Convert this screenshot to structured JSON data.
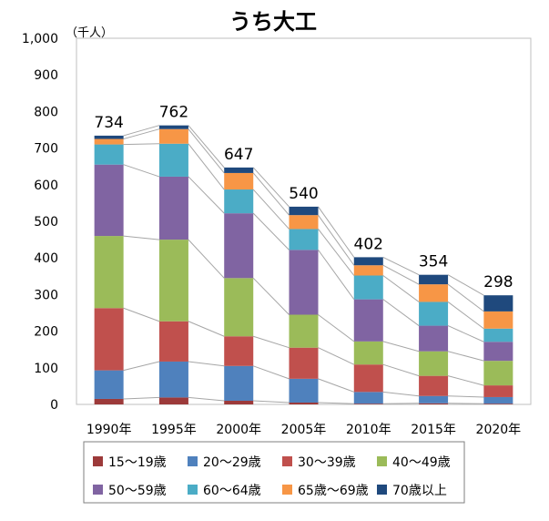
{
  "chart_data": {
    "type": "bar",
    "stacked": true,
    "title": "うち大工",
    "unit_label": "（千人）",
    "categories": [
      "1990年",
      "1995年",
      "2000年",
      "2005年",
      "2010年",
      "2015年",
      "2020年"
    ],
    "totals": [
      734,
      762,
      647,
      540,
      402,
      354,
      298
    ],
    "ylim": [
      0,
      1000
    ],
    "yticks": [
      "0",
      "100",
      "200",
      "300",
      "400",
      "500",
      "600",
      "700",
      "800",
      "900",
      "1,000"
    ],
    "grid": false,
    "legend_position": "bottom",
    "series": [
      {
        "name": "15～19歳",
        "color": "#9C3A3A",
        "values": [
          15,
          19,
          10,
          5,
          2,
          3,
          2
        ]
      },
      {
        "name": "20～29歳",
        "color": "#4F81BD",
        "values": [
          78,
          98,
          95,
          65,
          32,
          20,
          18
        ]
      },
      {
        "name": "30～39歳",
        "color": "#C0504D",
        "values": [
          170,
          110,
          81,
          85,
          75,
          55,
          32
        ]
      },
      {
        "name": "40～49歳",
        "color": "#9BBB59",
        "values": [
          197,
          223,
          159,
          90,
          63,
          67,
          67
        ]
      },
      {
        "name": "50～59歳",
        "color": "#8064A2",
        "values": [
          195,
          172,
          177,
          177,
          115,
          70,
          52
        ]
      },
      {
        "name": "60～64歳",
        "color": "#4BACC6",
        "values": [
          55,
          90,
          65,
          57,
          65,
          65,
          36
        ]
      },
      {
        "name": "65歳～69歳",
        "color": "#F79646",
        "values": [
          15,
          40,
          45,
          38,
          28,
          48,
          47
        ]
      },
      {
        "name": "70歳以上",
        "color": "#1F497D",
        "values": [
          9,
          10,
          15,
          23,
          22,
          26,
          44
        ]
      }
    ]
  }
}
